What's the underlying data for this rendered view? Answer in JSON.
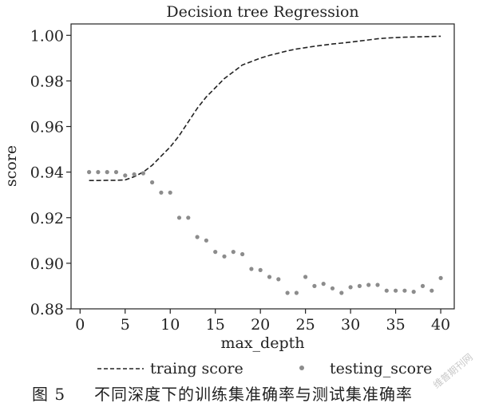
{
  "chart_data": {
    "type": "line",
    "title": "Decision tree Regression",
    "xlabel": "max_depth",
    "ylabel": "score",
    "xlim": [
      -1,
      41.5
    ],
    "ylim": [
      0.88,
      1.005
    ],
    "xticks": [
      0,
      5,
      10,
      15,
      20,
      25,
      30,
      35,
      40
    ],
    "yticks": [
      0.88,
      0.9,
      0.92,
      0.94,
      0.96,
      0.98,
      1.0
    ],
    "ytick_labels": [
      "0.88",
      "0.90",
      "0.92",
      "0.94",
      "0.96",
      "0.98",
      "1.00"
    ],
    "grid": false,
    "legend_position": "below-plot",
    "x": [
      1,
      2,
      3,
      4,
      5,
      6,
      7,
      8,
      9,
      10,
      11,
      12,
      13,
      14,
      15,
      16,
      17,
      18,
      19,
      20,
      21,
      22,
      23,
      24,
      25,
      26,
      27,
      28,
      29,
      30,
      31,
      32,
      33,
      34,
      35,
      36,
      37,
      38,
      39,
      40
    ],
    "series": [
      {
        "name": "traing score",
        "style": "dashed",
        "color": "#222222",
        "values": [
          0.9363,
          0.9363,
          0.9364,
          0.9364,
          0.9366,
          0.938,
          0.94,
          0.943,
          0.947,
          0.951,
          0.956,
          0.962,
          0.968,
          0.973,
          0.977,
          0.981,
          0.984,
          0.987,
          0.9885,
          0.99,
          0.9912,
          0.9922,
          0.9932,
          0.994,
          0.9946,
          0.9952,
          0.9957,
          0.9962,
          0.9966,
          0.997,
          0.9975,
          0.998,
          0.9985,
          0.9988,
          0.999,
          0.9992,
          0.9993,
          0.9994,
          0.9995,
          0.9996
        ]
      },
      {
        "name": "testing_score",
        "style": "dots",
        "color": "#8c8c8c",
        "values": [
          0.94,
          0.94,
          0.94,
          0.94,
          0.9385,
          0.939,
          0.9395,
          0.9355,
          0.931,
          0.931,
          0.92,
          0.92,
          0.9115,
          0.91,
          0.905,
          0.903,
          0.905,
          0.904,
          0.8975,
          0.897,
          0.894,
          0.893,
          0.887,
          0.887,
          0.894,
          0.89,
          0.891,
          0.889,
          0.887,
          0.8895,
          0.89,
          0.8905,
          0.8905,
          0.888,
          0.888,
          0.888,
          0.8875,
          0.89,
          0.888,
          0.8935
        ]
      }
    ]
  },
  "caption": {
    "figure_number": "图 5",
    "text": "不同深度下的训练集准确率与测试集准确率"
  },
  "watermark": {
    "text": "维普期刊网"
  }
}
